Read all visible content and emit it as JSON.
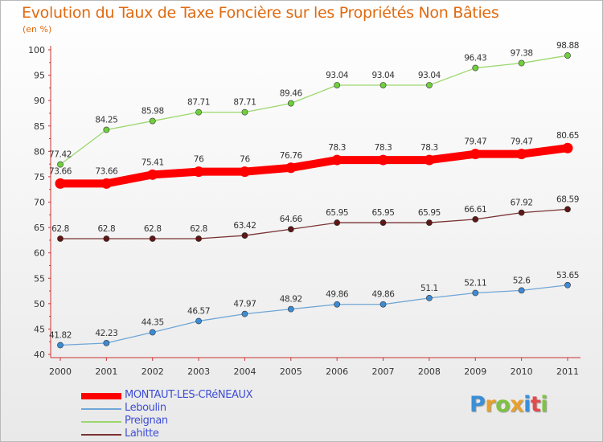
{
  "chart_data": {
    "type": "line",
    "title": "Evolution du Taux de Taxe Foncière sur les Propriétés Non Bâties",
    "subtitle": "(en %)",
    "xlabel": "",
    "ylabel": "",
    "ylim": [
      40,
      100
    ],
    "yticks": [
      40,
      45,
      50,
      55,
      60,
      65,
      70,
      75,
      80,
      85,
      90,
      95,
      100
    ],
    "grid": false,
    "legend": "bottom-left",
    "categories": [
      "2000",
      "2001",
      "2002",
      "2003",
      "2004",
      "2005",
      "2006",
      "2007",
      "2008",
      "2009",
      "2010",
      "2011"
    ],
    "series": [
      {
        "name": "MONTAUT-LES-CRéNEAUX",
        "color": "#ff0000",
        "point_color": "#ff0000",
        "emphasis": true,
        "values": [
          73.66,
          73.66,
          75.41,
          76,
          76,
          76.76,
          78.3,
          78.3,
          78.3,
          79.47,
          79.47,
          80.65
        ],
        "labels": [
          "73.66",
          "73.66",
          "75.41",
          "76",
          "76",
          "76.76",
          "78.3",
          "78.3",
          "78.3",
          "79.47",
          "79.47",
          "80.65"
        ]
      },
      {
        "name": "Leboulin",
        "color": "#6fa6d6",
        "point_color": "#3d8bd3",
        "emphasis": false,
        "values": [
          41.82,
          42.23,
          44.35,
          46.57,
          47.97,
          48.92,
          49.86,
          49.86,
          51.1,
          52.11,
          52.6,
          53.65
        ],
        "labels": [
          "41.82",
          "42.23",
          "44.35",
          "46.57",
          "47.97",
          "48.92",
          "49.86",
          "49.86",
          "51.1",
          "52.11",
          "52.6",
          "53.65"
        ]
      },
      {
        "name": "Preignan",
        "color": "#9cd86e",
        "point_color": "#6fcf3d",
        "emphasis": false,
        "values": [
          77.42,
          84.25,
          85.98,
          87.71,
          87.71,
          89.46,
          93.04,
          93.04,
          93.04,
          96.43,
          97.38,
          98.88
        ],
        "labels": [
          "77.42",
          "84.25",
          "85.98",
          "87.71",
          "87.71",
          "89.46",
          "93.04",
          "93.04",
          "93.04",
          "96.43",
          "97.38",
          "98.88"
        ]
      },
      {
        "name": "Lahitte",
        "color": "#7a3232",
        "point_color": "#5e1616",
        "emphasis": false,
        "values": [
          62.8,
          62.8,
          62.8,
          62.8,
          63.42,
          64.66,
          65.95,
          65.95,
          65.95,
          66.61,
          67.92,
          68.59
        ],
        "labels": [
          "62.8",
          "62.8",
          "62.8",
          "62.8",
          "63.42",
          "64.66",
          "65.95",
          "65.95",
          "65.95",
          "66.61",
          "67.92",
          "68.59"
        ]
      }
    ]
  },
  "logo": {
    "text": "Proxiti",
    "colors": [
      "#3a8fd8",
      "#e8a02c",
      "#7fc241",
      "#e8a02c",
      "#3a8fd8",
      "#e24b4b",
      "#7fc241"
    ]
  }
}
